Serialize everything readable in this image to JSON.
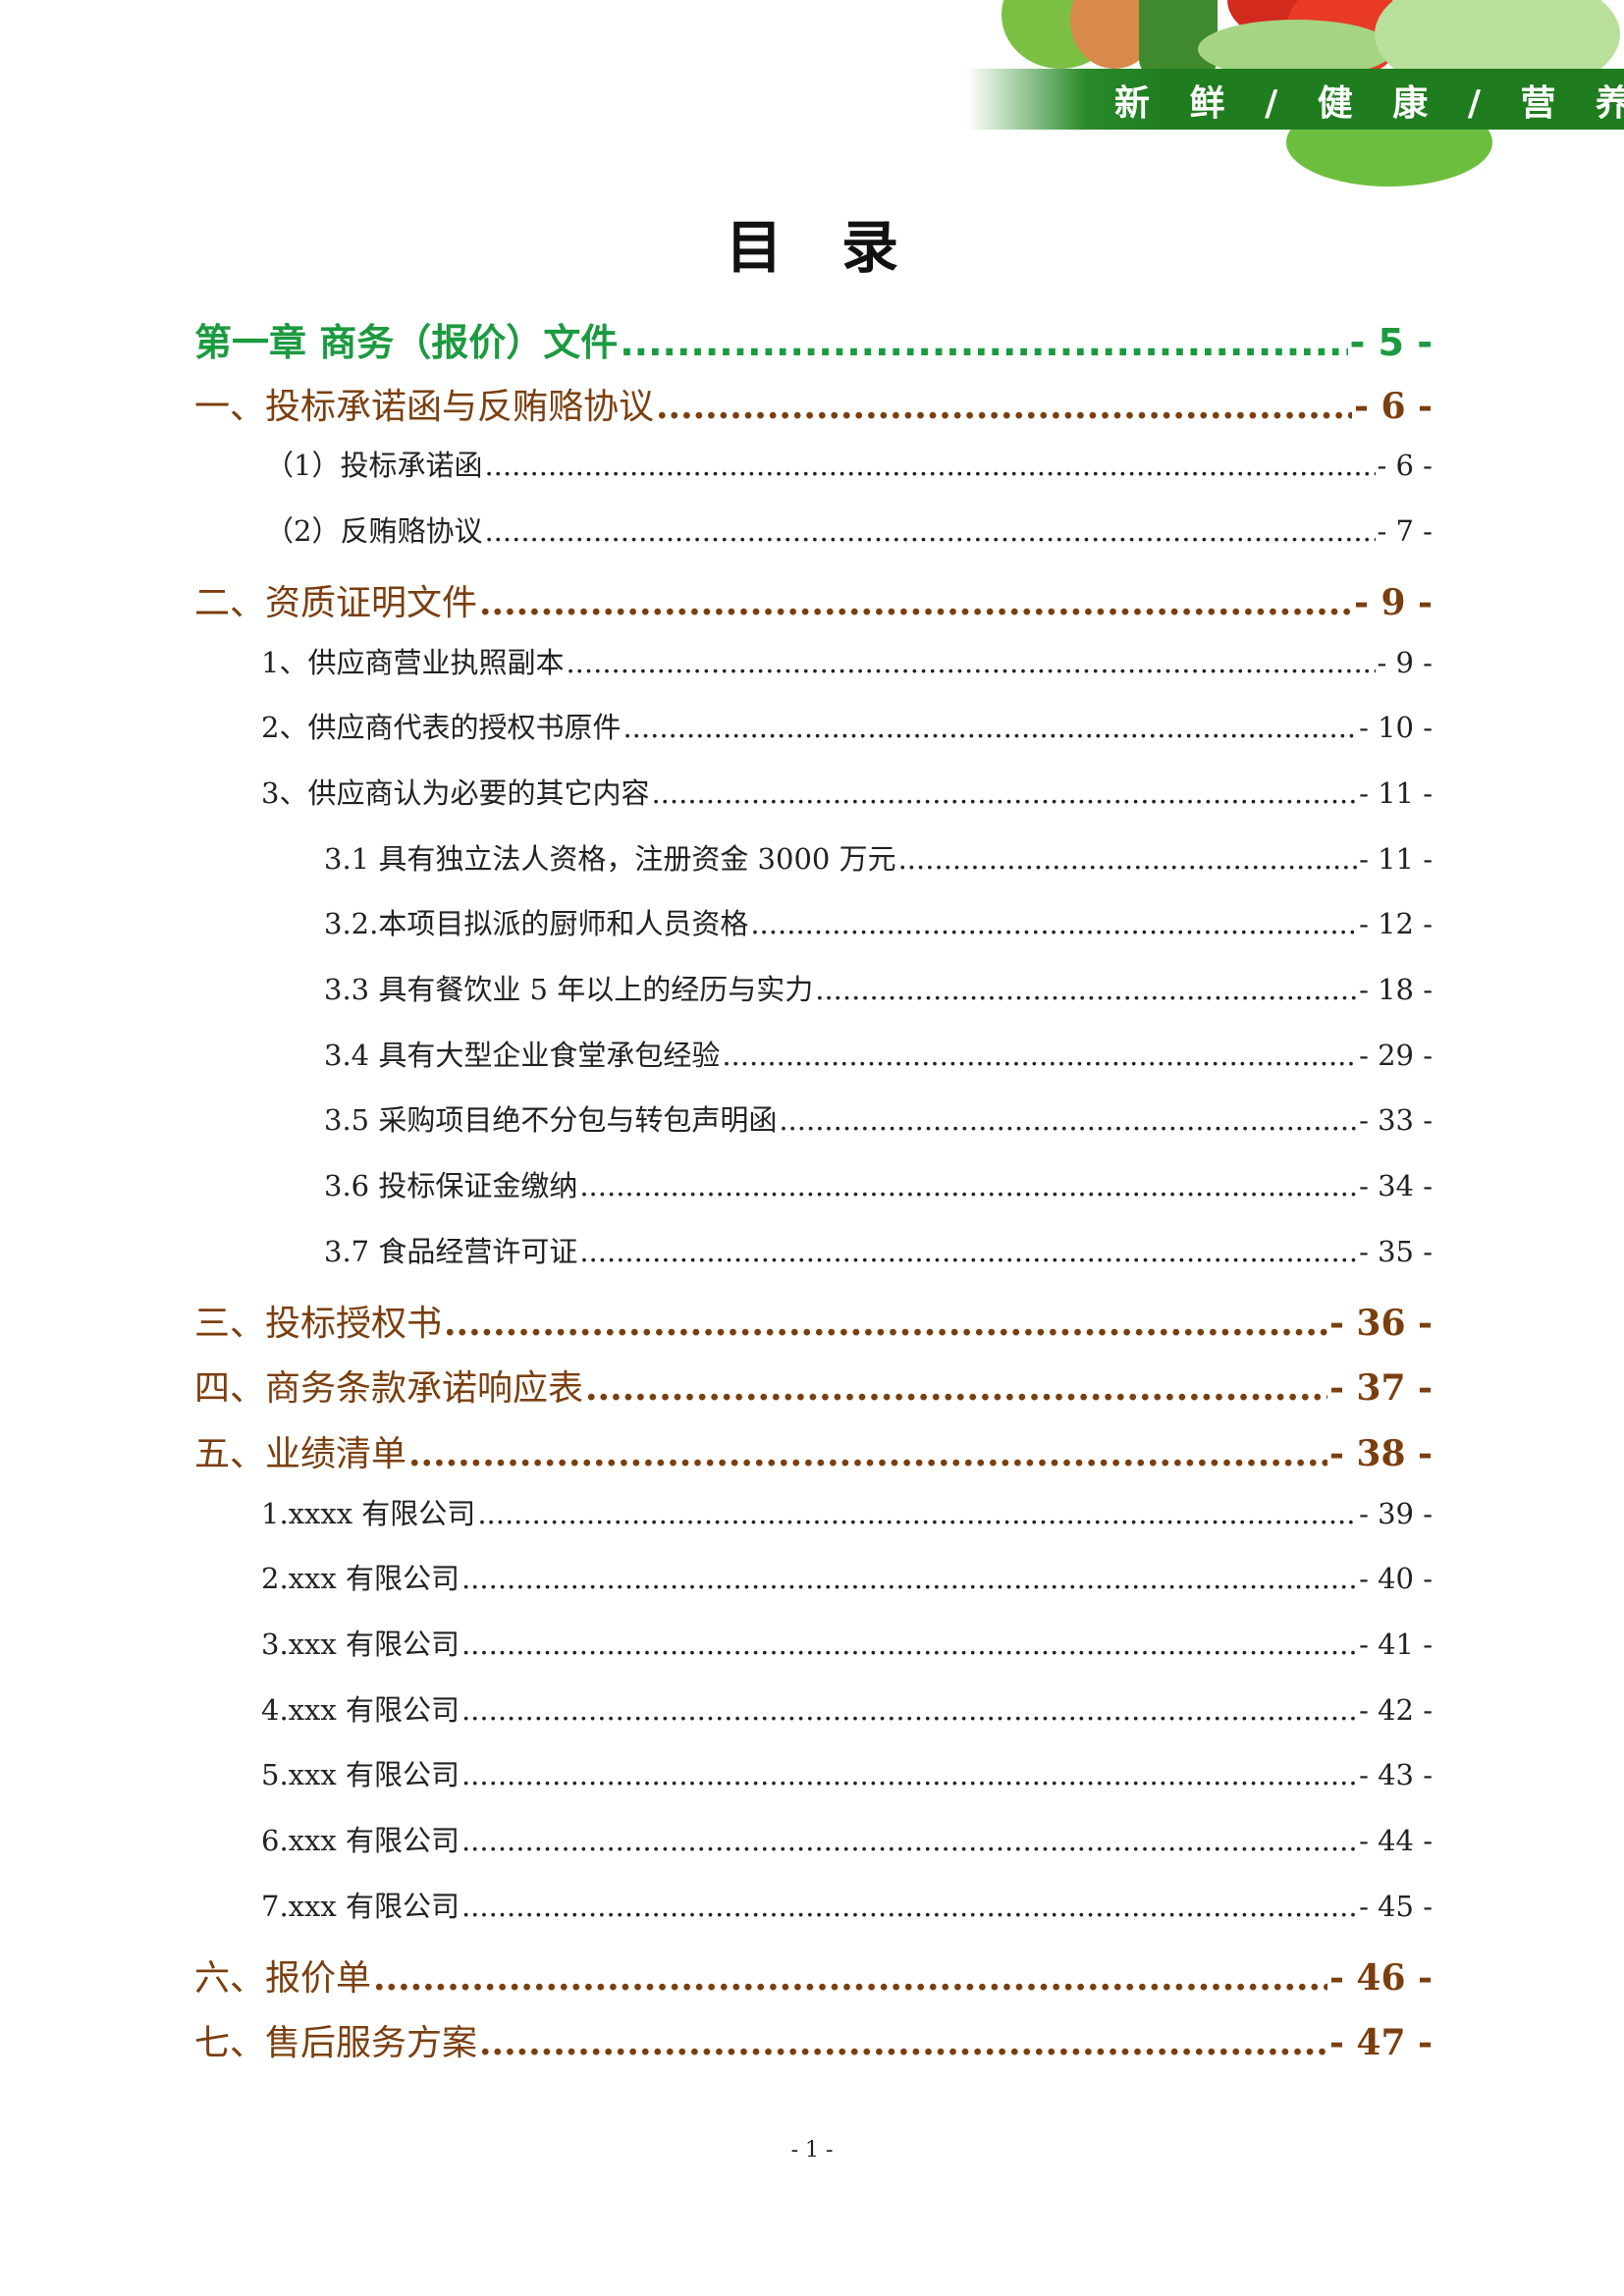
{
  "header": {
    "slogan": "新 鲜 / 健 康 / 营 养",
    "brand_color": "#1f7d1f"
  },
  "title": "目录",
  "colors": {
    "chapter": "#1c9a40",
    "section": "#7b3f0f",
    "entry": "#222222"
  },
  "toc": [
    {
      "level": 0,
      "label": "第一章 商务（报价）文件",
      "page": "- 5 -"
    },
    {
      "level": 1,
      "label": "一、投标承诺函与反贿赂协议",
      "page": "- 6 -"
    },
    {
      "level": 2,
      "label": "（1）投标承诺函",
      "page": "- 6 -"
    },
    {
      "level": 2,
      "label": "（2）反贿赂协议",
      "page": "- 7 -"
    },
    {
      "level": 1,
      "label": "二、资质证明文件",
      "page": "- 9 -"
    },
    {
      "level": 2,
      "label": "1、供应商营业执照副本",
      "page": "- 9 -"
    },
    {
      "level": 2,
      "label": "2、供应商代表的授权书原件",
      "page": "- 10 -"
    },
    {
      "level": 2,
      "label": "3、供应商认为必要的其它内容",
      "page": "- 11 -"
    },
    {
      "level": 3,
      "label": "3.1 具有独立法人资格，注册资金 3000 万元",
      "page": "- 11 -"
    },
    {
      "level": 3,
      "label": "3.2.本项目拟派的厨师和人员资格",
      "page": "- 12 -"
    },
    {
      "level": 3,
      "label": "3.3 具有餐饮业 5 年以上的经历与实力",
      "page": "- 18 -"
    },
    {
      "level": 3,
      "label": "3.4 具有大型企业食堂承包经验",
      "page": "- 29 -"
    },
    {
      "level": 3,
      "label": "3.5 采购项目绝不分包与转包声明函",
      "page": "- 33 -"
    },
    {
      "level": 3,
      "label": "3.6 投标保证金缴纳",
      "page": "- 34 -"
    },
    {
      "level": 3,
      "label": "3.7 食品经营许可证",
      "page": "- 35 -"
    },
    {
      "level": 1,
      "label": "三、投标授权书",
      "page": "- 36 -"
    },
    {
      "level": 1,
      "label": "四、商务条款承诺响应表",
      "page": "- 37 -"
    },
    {
      "level": 1,
      "label": "五、业绩清单",
      "page": "- 38 -"
    },
    {
      "level": 2,
      "label": "1.xxxx 有限公司",
      "page": "- 39 -"
    },
    {
      "level": 2,
      "label": "2.xxx 有限公司",
      "page": "- 40 -"
    },
    {
      "level": 2,
      "label": "3.xxx 有限公司",
      "page": "- 41 -"
    },
    {
      "level": 2,
      "label": "4.xxx 有限公司",
      "page": "- 42 -"
    },
    {
      "level": 2,
      "label": "5.xxx 有限公司",
      "page": "- 43 -"
    },
    {
      "level": 2,
      "label": "6.xxx 有限公司",
      "page": "- 44 -"
    },
    {
      "level": 2,
      "label": "7.xxx 有限公司",
      "page": "- 45 -"
    },
    {
      "level": 1,
      "label": "六、报价单",
      "page": "- 46 -"
    },
    {
      "level": 1,
      "label": "七、售后服务方案",
      "page": "- 47 -"
    }
  ],
  "footer": {
    "page_number": "- 1 -"
  }
}
